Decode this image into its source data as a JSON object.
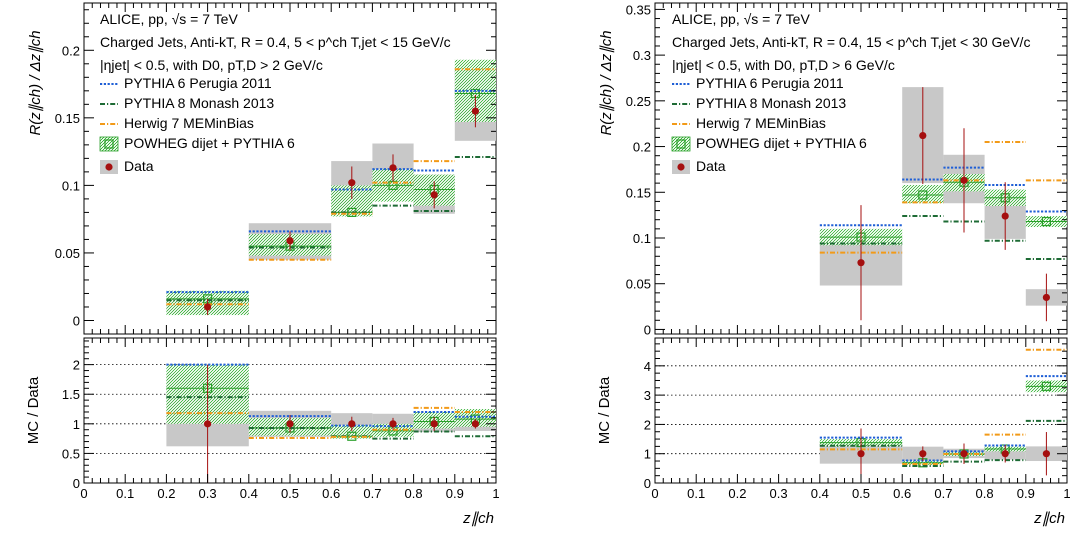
{
  "chart_data": [
    {
      "type": "scatter",
      "panel": "left",
      "text_lines": [
        "ALICE, pp, √s = 7 TeV",
        "Charged Jets, Anti-kT, R = 0.4, 5 < p^ch T,jet < 15 GeV/c",
        "|ηjet| < 0.5, with D0, pT,D > 2 GeV/c"
      ],
      "ylabel_top": "R(z∥ch) / Δz∥ch",
      "ylabel_bottom": "MC / Data",
      "xlabel": "z∥ch",
      "xlim": [
        0,
        1
      ],
      "ylim_top": [
        -0.01,
        0.235
      ],
      "ylim_bottom": [
        0,
        2.45
      ],
      "x_ticks": [
        "0",
        "0.1",
        "0.2",
        "0.3",
        "0.4",
        "0.5",
        "0.6",
        "0.7",
        "0.8",
        "0.9",
        "1"
      ],
      "y_ticks_top": [
        "0",
        "0.05",
        "0.1",
        "0.15",
        "0.2"
      ],
      "y_ticks_bottom": [
        "0",
        "0.5",
        "1",
        "1.5",
        "2"
      ],
      "grid_bottom": [
        0.5,
        1,
        1.5,
        2
      ],
      "bins": [
        [
          0.2,
          0.4
        ],
        [
          0.4,
          0.6
        ],
        [
          0.6,
          0.7
        ],
        [
          0.7,
          0.8
        ],
        [
          0.8,
          0.9
        ],
        [
          0.9,
          1.0
        ]
      ],
      "x_centers": [
        0.3,
        0.5,
        0.65,
        0.75,
        0.85,
        0.95
      ],
      "series": [
        {
          "name": "PYTHIA 6 Perugia 2011",
          "color": "#1f5fd6",
          "style": "dotted",
          "values": [
            0.021,
            0.066,
            0.097,
            0.112,
            0.111,
            0.17
          ]
        },
        {
          "name": "PYTHIA 8 Monash 2013",
          "color": "#1e6b35",
          "style": "dashdot",
          "values": [
            0.015,
            0.054,
            0.08,
            0.085,
            0.081,
            0.121
          ]
        },
        {
          "name": "Herwig 7 MEMinBias",
          "color": "#f29a18",
          "style": "dashdot",
          "values": [
            0.012,
            0.045,
            0.079,
            0.102,
            0.118,
            0.186
          ]
        },
        {
          "name": "POWHEG dijet + PYTHIA 6",
          "color": "#2aa02a",
          "style": "band",
          "values": [
            0.016,
            0.055,
            0.08,
            0.1,
            0.097,
            0.168
          ],
          "band": [
            [
              0.004,
              0.022
            ],
            [
              0.048,
              0.064
            ],
            [
              0.077,
              0.1
            ],
            [
              0.088,
              0.112
            ],
            [
              0.085,
              0.108
            ],
            [
              0.147,
              0.193
            ]
          ]
        },
        {
          "name": "Data",
          "color": "#a50f0f",
          "style": "points",
          "values": [
            0.01,
            0.059,
            0.102,
            0.113,
            0.093,
            0.155
          ],
          "stat_err": [
            0.006,
            0.007,
            0.012,
            0.01,
            0.01,
            0.012
          ],
          "syst": [
            [
              0.005,
              0.018
            ],
            [
              0.045,
              0.072
            ],
            [
              0.08,
              0.118
            ],
            [
              0.094,
              0.131
            ],
            [
              0.079,
              0.108
            ],
            [
              0.133,
              0.186
            ]
          ]
        }
      ],
      "ratio_series": [
        {
          "name": "PYTHIA 6 Perugia 2011",
          "values": [
            2.0,
            1.13,
            0.97,
            0.96,
            1.2,
            1.12
          ]
        },
        {
          "name": "PYTHIA 8 Monash 2013",
          "values": [
            1.45,
            0.93,
            0.79,
            0.75,
            0.87,
            0.79
          ]
        },
        {
          "name": "Herwig 7 MEMinBias",
          "values": [
            1.18,
            0.76,
            0.78,
            0.9,
            1.27,
            1.2
          ]
        },
        {
          "name": "POWHEG dijet + PYTHIA 6",
          "values": [
            1.6,
            0.93,
            0.79,
            0.88,
            1.04,
            1.08
          ],
          "band": [
            [
              1.0,
              2.0
            ],
            [
              0.8,
              1.1
            ],
            [
              0.75,
              0.98
            ],
            [
              0.78,
              1.0
            ],
            [
              0.92,
              1.2
            ],
            [
              0.95,
              1.25
            ]
          ]
        },
        {
          "name": "Data",
          "values": [
            1,
            1,
            1,
            1,
            1,
            1
          ],
          "stat_err": [
            1.0,
            0.15,
            0.12,
            0.1,
            0.12,
            0.08
          ],
          "syst": [
            [
              0.62,
              1.85
            ],
            [
              0.78,
              1.22
            ],
            [
              0.8,
              1.18
            ],
            [
              0.82,
              1.17
            ],
            [
              0.86,
              1.15
            ],
            [
              0.88,
              1.2
            ]
          ]
        }
      ],
      "legend": [
        "PYTHIA 6 Perugia 2011",
        "PYTHIA 8 Monash 2013",
        "Herwig 7 MEMinBias",
        "POWHEG dijet + PYTHIA 6",
        "Data"
      ]
    },
    {
      "type": "scatter",
      "panel": "right",
      "text_lines": [
        "ALICE, pp, √s = 7 TeV",
        "Charged Jets, Anti-kT, R = 0.4, 15 < p^ch T,jet < 30 GeV/c",
        "|ηjet| < 0.5, with D0, pT,D > 6 GeV/c"
      ],
      "ylabel_top": "R(z∥ch) / Δz∥ch",
      "ylabel_bottom": "MC / Data",
      "xlabel": "z∥ch",
      "xlim": [
        0,
        1
      ],
      "ylim_top": [
        -0.005,
        0.357
      ],
      "ylim_bottom": [
        0,
        4.95
      ],
      "x_ticks": [
        "0",
        "0.1",
        "0.2",
        "0.3",
        "0.4",
        "0.5",
        "0.6",
        "0.7",
        "0.8",
        "0.9",
        "1"
      ],
      "y_ticks_top": [
        "0",
        "0.05",
        "0.1",
        "0.15",
        "0.2",
        "0.25",
        "0.3",
        "0.35"
      ],
      "y_ticks_bottom": [
        "0",
        "1",
        "2",
        "3",
        "4"
      ],
      "grid_bottom": [
        1,
        2,
        3,
        4
      ],
      "bins": [
        [
          0.4,
          0.6
        ],
        [
          0.6,
          0.7
        ],
        [
          0.7,
          0.8
        ],
        [
          0.8,
          0.9
        ],
        [
          0.9,
          1.0
        ]
      ],
      "x_centers": [
        0.5,
        0.65,
        0.75,
        0.85,
        0.95
      ],
      "series": [
        {
          "name": "PYTHIA 6 Perugia 2011",
          "color": "#1f5fd6",
          "style": "dotted",
          "values": [
            0.114,
            0.164,
            0.177,
            0.158,
            0.129
          ]
        },
        {
          "name": "PYTHIA 8 Monash 2013",
          "color": "#1e6b35",
          "style": "dashdot",
          "values": [
            0.094,
            0.124,
            0.118,
            0.097,
            0.077
          ]
        },
        {
          "name": "Herwig 7 MEMinBias",
          "color": "#f29a18",
          "style": "dashdot",
          "values": [
            0.084,
            0.139,
            0.163,
            0.205,
            0.163
          ]
        },
        {
          "name": "POWHEG dijet + PYTHIA 6",
          "color": "#2aa02a",
          "style": "band",
          "values": [
            0.101,
            0.147,
            0.161,
            0.144,
            0.118
          ],
          "band": [
            [
              0.092,
              0.11
            ],
            [
              0.138,
              0.158
            ],
            [
              0.151,
              0.17
            ],
            [
              0.135,
              0.153
            ],
            [
              0.112,
              0.124
            ]
          ]
        },
        {
          "name": "Data",
          "color": "#a50f0f",
          "style": "points",
          "values": [
            0.073,
            0.212,
            0.163,
            0.124,
            0.035
          ],
          "stat_err": [
            0.063,
            0.053,
            0.057,
            0.037,
            0.026
          ],
          "syst": [
            [
              0.048,
              0.098
            ],
            [
              0.16,
              0.265
            ],
            [
              0.138,
              0.191
            ],
            [
              0.099,
              0.147
            ],
            [
              0.026,
              0.044
            ]
          ]
        }
      ],
      "ratio_series": [
        {
          "name": "PYTHIA 6 Perugia 2011",
          "values": [
            1.55,
            0.77,
            1.08,
            1.28,
            3.65
          ]
        },
        {
          "name": "PYTHIA 8 Monash 2013",
          "values": [
            1.27,
            0.58,
            0.73,
            0.78,
            2.12
          ]
        },
        {
          "name": "Herwig 7 MEMinBias",
          "values": [
            1.15,
            0.65,
            0.99,
            1.65,
            4.55
          ]
        },
        {
          "name": "POWHEG dijet + PYTHIA 6",
          "values": [
            1.38,
            0.69,
            0.99,
            1.16,
            3.3
          ],
          "band": [
            [
              1.25,
              1.5
            ],
            [
              0.62,
              0.76
            ],
            [
              0.92,
              1.06
            ],
            [
              1.08,
              1.24
            ],
            [
              3.1,
              3.5
            ]
          ]
        },
        {
          "name": "Data",
          "values": [
            1,
            1,
            1,
            1,
            1
          ],
          "stat_err": [
            0.86,
            0.25,
            0.35,
            0.3,
            0.74
          ],
          "syst": [
            [
              0.66,
              1.34
            ],
            [
              0.76,
              1.24
            ],
            [
              0.85,
              1.17
            ],
            [
              0.8,
              1.19
            ],
            [
              0.75,
              1.25
            ]
          ]
        }
      ],
      "legend": [
        "PYTHIA 6 Perugia 2011",
        "PYTHIA 8 Monash 2013",
        "Herwig 7 MEMinBias",
        "POWHEG dijet + PYTHIA 6",
        "Data"
      ]
    }
  ]
}
